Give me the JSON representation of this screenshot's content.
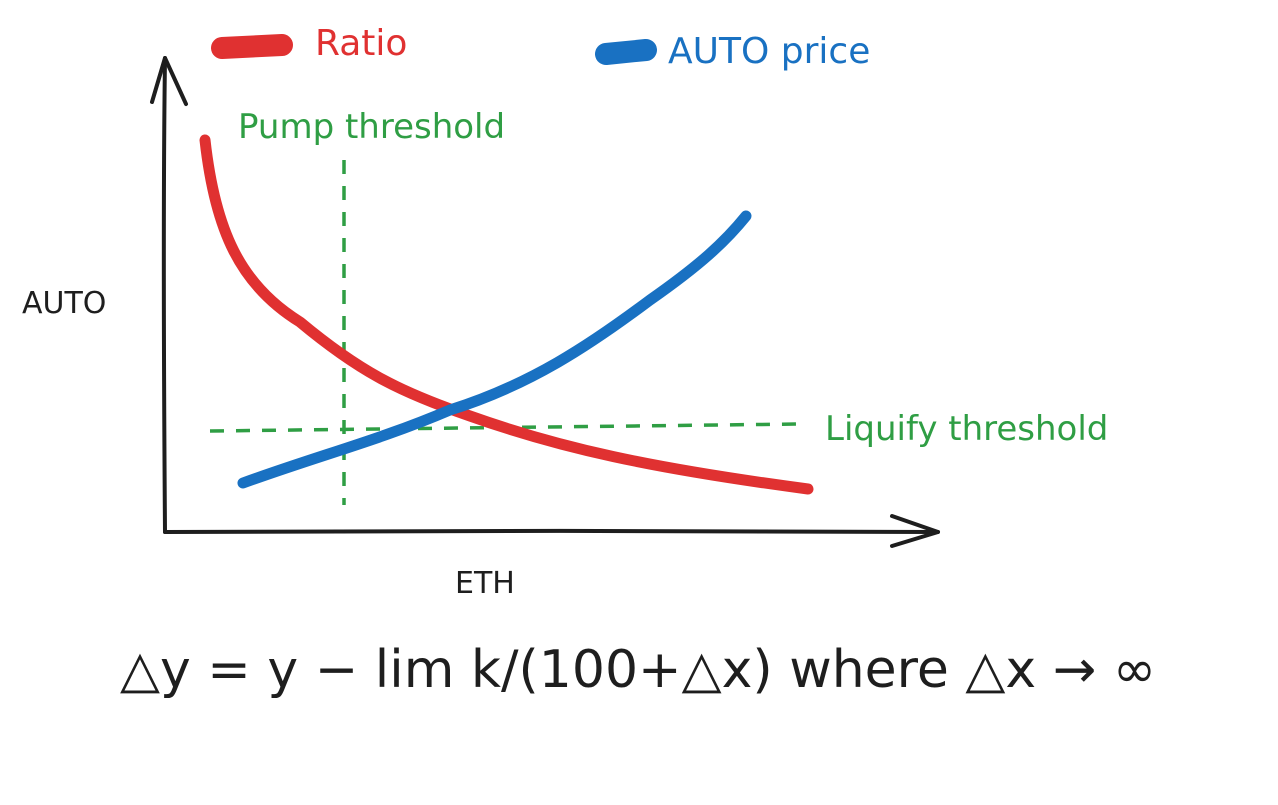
{
  "legend": [
    {
      "label": "Ratio",
      "color": "#e03131"
    },
    {
      "label": "AUTO price",
      "color": "#1971c2"
    }
  ],
  "axes": {
    "y_label": "AUTO",
    "x_label": "ETH",
    "color": "#1e1e1e"
  },
  "thresholds": {
    "pump_label": "Pump threshold",
    "liquify_label": "Liquify threshold",
    "color": "#2f9e44"
  },
  "formula": "△y = y − lim k/(100+△x) where △x → ∞"
}
